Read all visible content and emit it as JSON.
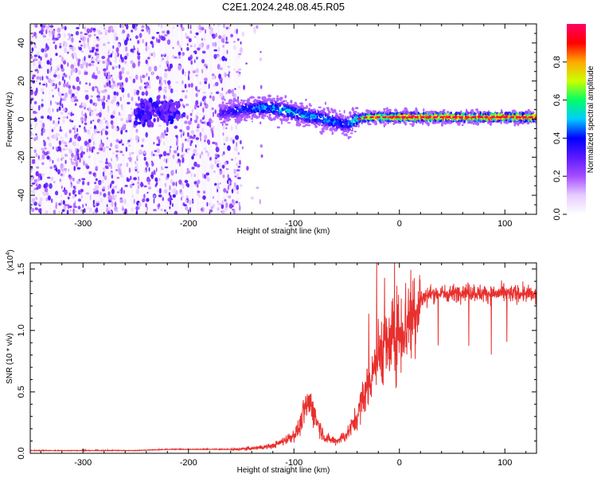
{
  "page_title": "C2E1.2024.248.08.45.R05",
  "chart_data": [
    {
      "type": "heatmap",
      "xlabel": "Height of straight line (km)",
      "ylabel": "Frequency (Hz)",
      "xlim": [
        -350,
        130
      ],
      "ylim": [
        -50,
        50
      ],
      "x_ticks": [
        -300,
        -200,
        -100,
        0,
        100
      ],
      "y_ticks": [
        -40,
        -20,
        0,
        20,
        40
      ],
      "colorbar": {
        "label": "Normalized spectral amplitude",
        "range": [
          0,
          1
        ],
        "ticks": [
          "0.0",
          "0.2",
          "0.4",
          "0.6",
          "0.8"
        ],
        "colors": [
          "#ffffff",
          "#e6ccff",
          "#a64dff",
          "#5a1aff",
          "#0000ff",
          "#00ccff",
          "#00ff66",
          "#ccff00",
          "#ffaa00",
          "#ff0000",
          "#ff0066"
        ]
      },
      "ridge": {
        "name": "",
        "x": [
          -170,
          -150,
          -130,
          -110,
          -90,
          -70,
          -50,
          -40,
          -30,
          -20,
          0,
          20,
          40,
          60,
          80,
          100,
          120,
          130
        ],
        "y": [
          3,
          5,
          6,
          5,
          2,
          0,
          -3,
          0,
          1,
          1,
          1,
          1,
          1,
          1,
          1,
          1,
          1,
          1
        ],
        "peak_amplitude": [
          0.35,
          0.45,
          0.5,
          0.55,
          0.55,
          0.5,
          0.45,
          0.6,
          0.8,
          0.85,
          0.95,
          0.95,
          0.95,
          0.95,
          0.95,
          0.95,
          0.95,
          0.95
        ]
      },
      "noise_extent_x": [
        -350,
        -150
      ],
      "noise_clusters_x": [
        -240,
        -220
      ]
    },
    {
      "type": "line",
      "xlabel": "Height of straight line (km)",
      "ylabel": "SNR (10 * v/v)",
      "y_multiplier": "(x10",
      "y_multiplier_exp": "4",
      "y_multiplier_close": ")",
      "xlim": [
        -350,
        130
      ],
      "ylim": [
        0,
        1.55
      ],
      "x_ticks": [
        -300,
        -200,
        -100,
        0,
        100
      ],
      "y_ticks": [
        "0.0",
        "0.5",
        "1.0",
        "1.5"
      ],
      "color": "#e8302e",
      "series": [
        {
          "x": [
            -350,
            -300,
            -250,
            -220,
            -200,
            -160,
            -140,
            -120,
            -110,
            -100,
            -95,
            -90,
            -85,
            -80,
            -75,
            -70,
            -60,
            -50,
            -40,
            -35,
            -30,
            -25,
            -20,
            -15,
            -10,
            -5,
            0,
            5,
            10,
            15,
            20,
            30,
            40,
            50,
            60,
            80,
            100,
            120,
            130
          ],
          "y": [
            0.02,
            0.02,
            0.02,
            0.03,
            0.03,
            0.03,
            0.04,
            0.06,
            0.1,
            0.15,
            0.2,
            0.35,
            0.42,
            0.3,
            0.2,
            0.12,
            0.1,
            0.15,
            0.3,
            0.45,
            0.55,
            0.7,
            0.8,
            0.9,
            0.85,
            0.95,
            1.0,
            1.05,
            1.1,
            1.2,
            1.25,
            1.3,
            1.3,
            1.3,
            1.32,
            1.3,
            1.3,
            1.3,
            1.28
          ]
        }
      ]
    }
  ]
}
